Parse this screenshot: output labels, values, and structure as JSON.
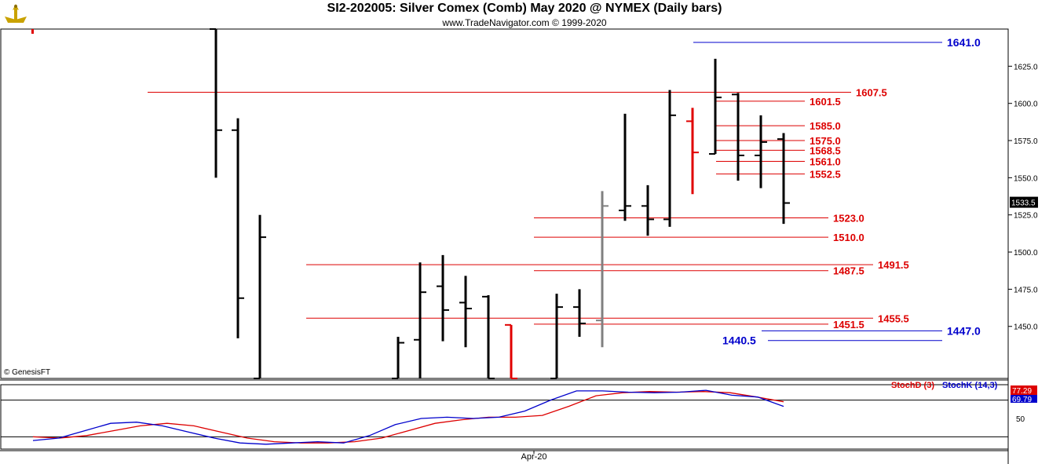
{
  "header": {
    "title": "SI2-202005:  Silver Comex (Comb) May 2020 @ NYMEX  (Daily bars)",
    "subtitle": "www.TradeNavigator.com © 1999-2020",
    "copyright": "© GenesisFT"
  },
  "chart_data": [
    {
      "type": "ohlc",
      "ylim": [
        1415,
        1650
      ],
      "y_ticks": [
        "1450.0",
        "1475.0",
        "1500.0",
        "1525.0",
        "1550.0",
        "1575.0",
        "1600.0",
        "1625.0"
      ],
      "y_tick_values": [
        1450,
        1475,
        1500,
        1525,
        1550,
        1575,
        1600,
        1625
      ],
      "x_label": "Apr-20",
      "last_price_label": "1533.5",
      "last_price": 1533.5,
      "bars": [
        {
          "h": 1650,
          "l": 1550,
          "o": 1650,
          "c": 1582,
          "color": "#000000"
        },
        {
          "h": 1590,
          "l": 1442,
          "o": 1582,
          "c": 1469,
          "color": "#000000"
        },
        {
          "h": 1525,
          "l": 1415,
          "o": 1415,
          "c": 1510,
          "color": "#000000"
        },
        {
          "h": 1443,
          "l": 1415,
          "o": 1415,
          "c": 1439,
          "color": "#000000"
        },
        {
          "h": 1493,
          "l": 1415,
          "o": 1441,
          "c": 1473,
          "color": "#000000"
        },
        {
          "h": 1498,
          "l": 1440,
          "o": 1477,
          "c": 1461,
          "color": "#000000"
        },
        {
          "h": 1484,
          "l": 1436,
          "o": 1466,
          "c": 1462,
          "color": "#000000"
        },
        {
          "h": 1471,
          "l": 1415,
          "o": 1470,
          "c": 1415,
          "color": "#000000"
        },
        {
          "h": 1451,
          "l": 1415,
          "o": 1451,
          "c": 1415,
          "color": "#e00000"
        },
        {
          "h": 1472,
          "l": 1415,
          "o": 1415,
          "c": 1463,
          "color": "#000000"
        },
        {
          "h": 1475,
          "l": 1443,
          "o": 1463,
          "c": 1452,
          "color": "#000000"
        },
        {
          "h": 1541,
          "l": 1436,
          "o": 1454,
          "c": 1531,
          "color": "#808080"
        },
        {
          "h": 1593,
          "l": 1521,
          "o": 1528,
          "c": 1531,
          "color": "#000000"
        },
        {
          "h": 1545,
          "l": 1511,
          "o": 1531,
          "c": 1522,
          "color": "#000000"
        },
        {
          "h": 1609,
          "l": 1517,
          "o": 1522,
          "c": 1592,
          "color": "#000000"
        },
        {
          "h": 1597,
          "l": 1539,
          "o": 1588,
          "c": 1567,
          "color": "#e00000"
        },
        {
          "h": 1630,
          "l": 1566,
          "o": 1566,
          "c": 1604,
          "color": "#000000"
        },
        {
          "h": 1607,
          "l": 1548,
          "o": 1606,
          "c": 1565,
          "color": "#000000"
        },
        {
          "h": 1592,
          "l": 1543,
          "o": 1565,
          "c": 1574,
          "color": "#000000"
        },
        {
          "h": 1580,
          "l": 1519,
          "o": 1576,
          "c": 1533,
          "color": "#000000"
        }
      ],
      "levels": [
        {
          "label": "1641.0",
          "value": 1641.0,
          "color": "#0000cc"
        },
        {
          "label": "1607.5",
          "value": 1607.5,
          "color": "#dd0000"
        },
        {
          "label": "1601.5",
          "value": 1601.5,
          "color": "#dd0000"
        },
        {
          "label": "1585.0",
          "value": 1585.0,
          "color": "#dd0000"
        },
        {
          "label": "1575.0",
          "value": 1575.0,
          "color": "#dd0000"
        },
        {
          "label": "1568.5",
          "value": 1568.5,
          "color": "#dd0000"
        },
        {
          "label": "1561.0",
          "value": 1561.0,
          "color": "#dd0000"
        },
        {
          "label": "1552.5",
          "value": 1552.5,
          "color": "#dd0000"
        },
        {
          "label": "1523.0",
          "value": 1523.0,
          "color": "#dd0000"
        },
        {
          "label": "1510.0",
          "value": 1510.0,
          "color": "#dd0000"
        },
        {
          "label": "1491.5",
          "value": 1491.5,
          "color": "#dd0000"
        },
        {
          "label": "1487.5",
          "value": 1487.5,
          "color": "#dd0000"
        },
        {
          "label": "1455.5",
          "value": 1455.5,
          "color": "#dd0000"
        },
        {
          "label": "1451.5",
          "value": 1451.5,
          "color": "#dd0000"
        },
        {
          "label": "1447.0",
          "value": 1447.0,
          "color": "#0000cc"
        },
        {
          "label": "1440.5",
          "value": 1440.5,
          "color": "#0000cc"
        }
      ]
    },
    {
      "type": "line",
      "ylim": [
        0,
        100
      ],
      "y_ticks": [
        "50"
      ],
      "y_tick_values": [
        50
      ],
      "series": [
        {
          "name": "StochD (3)",
          "color": "#dd0000",
          "values": [
            20,
            18,
            22,
            30,
            38,
            42,
            38,
            28,
            18,
            12,
            10,
            10,
            12,
            18,
            30,
            42,
            48,
            52,
            52,
            55,
            70,
            87,
            92,
            94,
            93,
            94,
            92,
            85,
            77.29
          ]
        },
        {
          "name": "StochK (14,3)",
          "color": "#0000cc",
          "values": [
            14,
            18,
            30,
            42,
            44,
            38,
            28,
            18,
            10,
            8,
            10,
            12,
            10,
            22,
            40,
            50,
            52,
            50,
            52,
            62,
            80,
            95,
            95,
            93,
            92,
            93,
            96,
            88,
            85,
            69.79
          ]
        }
      ],
      "last_values": [
        "77.29",
        "69.79"
      ]
    }
  ]
}
